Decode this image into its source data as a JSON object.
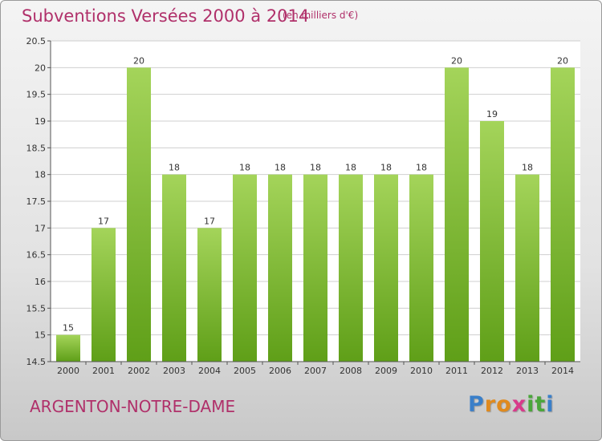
{
  "header": {
    "title": "Subventions Versées 2000 à 2014",
    "unit_note": "(en milliers d'€)"
  },
  "footer": {
    "town": "ARGENTON-NOTRE-DAME",
    "logo_letters": [
      "P",
      "r",
      "o",
      "x",
      "i",
      "t",
      "i"
    ],
    "logo_colors": [
      "#3a7fc9",
      "#e08a1e",
      "#e08a1e",
      "#d83a8a",
      "#4aa63a",
      "#4aa63a",
      "#3a7fc9"
    ]
  },
  "colors": {
    "bar_top": "#a4d45a",
    "bar_bottom": "#5f9f18",
    "grid": "#cfcfcf",
    "accent": "#b0306a"
  },
  "chart_data": {
    "type": "bar",
    "categories": [
      "2000",
      "2001",
      "2002",
      "2003",
      "2004",
      "2005",
      "2006",
      "2007",
      "2008",
      "2009",
      "2010",
      "2011",
      "2012",
      "2013",
      "2014"
    ],
    "values": [
      15,
      17,
      20,
      18,
      17,
      18,
      18,
      18,
      18,
      18,
      18,
      20,
      19,
      18,
      20
    ],
    "value_labels": [
      "15",
      "17",
      "20",
      "18",
      "17",
      "18",
      "18",
      "18",
      "18",
      "18",
      "18",
      "20",
      "19",
      "18",
      "20"
    ],
    "yticks": [
      "14.5",
      "15",
      "15.5",
      "16",
      "16.5",
      "17",
      "17.5",
      "18",
      "18.5",
      "19",
      "19.5",
      "20",
      "20.5"
    ],
    "ylim": [
      14.5,
      20.5
    ],
    "grid": true,
    "legend": "none"
  }
}
